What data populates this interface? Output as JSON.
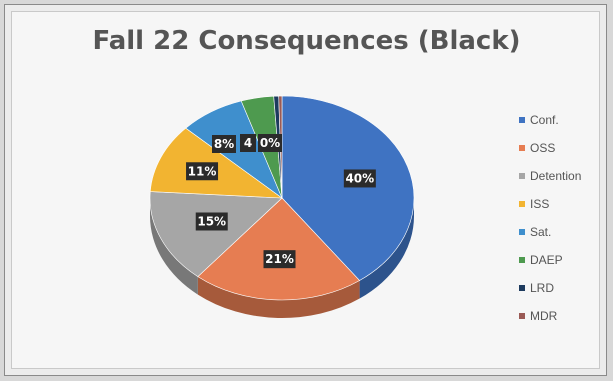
{
  "chart_data": {
    "type": "pie",
    "title": "Fall 22 Consequences (Black)",
    "legend_position": "right",
    "slices": [
      {
        "label": "Conf.",
        "value": 40,
        "display": "40%",
        "color": "#3f73c2"
      },
      {
        "label": "OSS",
        "value": 21,
        "display": "21%",
        "color": "#e67d52"
      },
      {
        "label": "Detention",
        "value": 15,
        "display": "15%",
        "color": "#a6a6a6"
      },
      {
        "label": "ISS",
        "value": 11,
        "display": "11%",
        "color": "#f2b431"
      },
      {
        "label": "Sat.",
        "value": 8,
        "display": "8%",
        "color": "#3f8fcd"
      },
      {
        "label": "DAEP",
        "value": 4,
        "display": "4",
        "color": "#4e9a4f"
      },
      {
        "label": "LRD",
        "value": 0.6,
        "display": "0%",
        "color": "#1d3a5e"
      },
      {
        "label": "MDR",
        "value": 0.4,
        "display": "",
        "color": "#9a5a55"
      }
    ]
  }
}
